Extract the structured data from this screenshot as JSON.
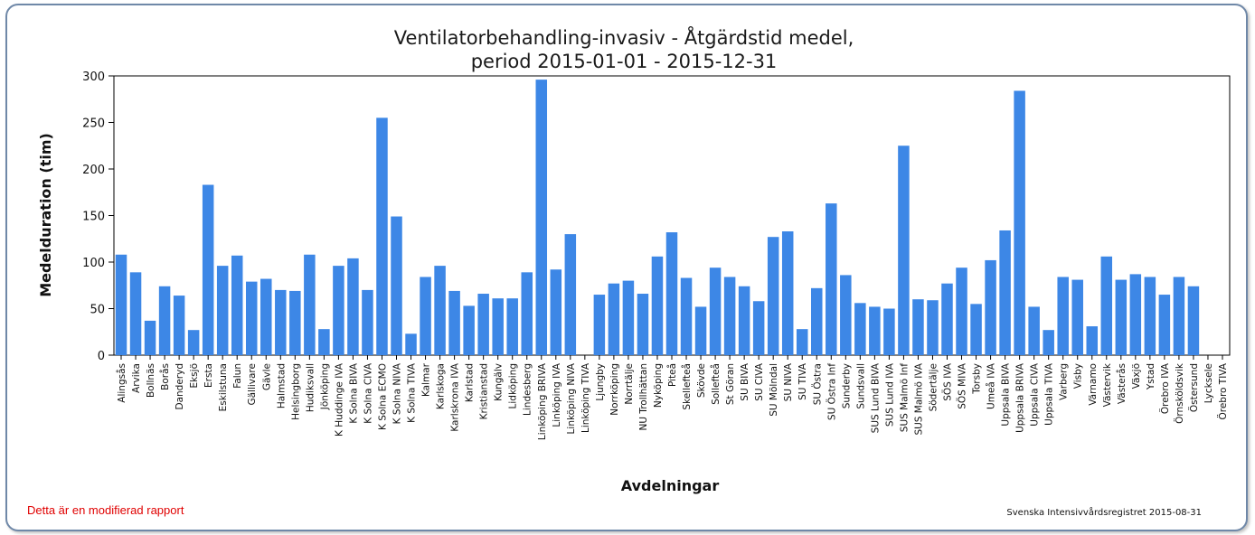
{
  "chart_data": {
    "type": "bar",
    "title_line1": "Ventilatorbehandling-invasiv - Åtgärdstid medel,",
    "title_line2": "period 2015-01-01 - 2015-12-31",
    "xlabel": "Avdelningar",
    "ylabel": "Medelduration (tim)",
    "ylim": [
      0,
      300
    ],
    "yticks": [
      0,
      50,
      100,
      150,
      200,
      250,
      300
    ],
    "grid": false,
    "bar_color": "#3d87e6",
    "categories": [
      "Alingsås",
      "Arvika",
      "Bollnäs",
      "Borås",
      "Danderyd",
      "Eksjö",
      "Ersta",
      "Eskilstuna",
      "Falun",
      "Gällivare",
      "Gävle",
      "Halmstad",
      "Helsingborg",
      "Hudiksvall",
      "Jönköping",
      "K Huddinge IVA",
      "K Solna BIVA",
      "K Solna CIVA",
      "K Solna ECMO",
      "K Solna NIVA",
      "K Solna TIVA",
      "Kalmar",
      "Karlskoga",
      "Karlskrona IVA",
      "Karlstad",
      "Kristianstad",
      "Kungälv",
      "Lidköping",
      "Lindesberg",
      "Linköping BRIVA",
      "Linköping IVA",
      "Linköping NIVA",
      "Linköping TIVA",
      "Ljungby",
      "Norrköping",
      "Norrtälje",
      "NU Trollhättan",
      "Nyköping",
      "Piteå",
      "Skellefteå",
      "Skövde",
      "Sollefteå",
      "St Göran",
      "SU BIVA",
      "SU CIVA",
      "SU Mölndal",
      "SU NIVA",
      "SU TIVA",
      "SU Östra",
      "SU Östra Inf",
      "Sunderby",
      "Sundsvall",
      "SUS Lund BIVA",
      "SUS Lund IVA",
      "SUS Malmö Inf",
      "SUS Malmö IVA",
      "Södertälje",
      "SÖS IVA",
      "SÖS MIVA",
      "Torsby",
      "Umeå IVA",
      "Uppsala BIVA",
      "Uppsala BRIVA",
      "Uppsala CIVA",
      "Uppsala TIVA",
      "Varberg",
      "Visby",
      "Värnamo",
      "Västervik",
      "Västerås",
      "Växjö",
      "Ystad",
      "Örebro IVA",
      "Örnsköldsvik",
      "Östersund",
      "Lycksele",
      "Örebro TIVA"
    ],
    "values": [
      108,
      89,
      37,
      74,
      64,
      27,
      183,
      96,
      107,
      79,
      82,
      70,
      69,
      108,
      28,
      96,
      104,
      70,
      255,
      149,
      23,
      84,
      96,
      69,
      53,
      66,
      61,
      61,
      89,
      296,
      92,
      130,
      null,
      65,
      77,
      80,
      66,
      106,
      132,
      83,
      52,
      94,
      84,
      74,
      58,
      127,
      133,
      28,
      72,
      163,
      86,
      56,
      52,
      50,
      225,
      60,
      59,
      77,
      94,
      55,
      102,
      134,
      284,
      52,
      27,
      84,
      81,
      31,
      106,
      81,
      87,
      84,
      65,
      84,
      74,
      null,
      null
    ]
  },
  "footer": {
    "note": "Detta är en modifierad rapport",
    "credit": "Svenska Intensivvårdsregistret 2015-08-31"
  }
}
